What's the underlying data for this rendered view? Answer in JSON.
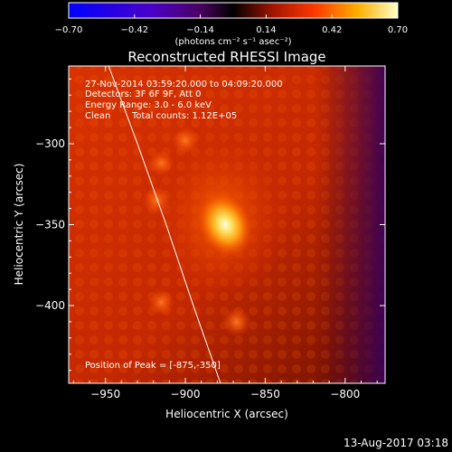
{
  "chart_data": {
    "type": "heatmap",
    "title": "Reconstructed RHESSI Image",
    "xlabel": "Heliocentric X (arcsec)",
    "ylabel": "Heliocentric Y (arcsec)",
    "xlim": [
      -973,
      -775
    ],
    "ylim": [
      -448,
      -252
    ],
    "x_ticks": [
      -950,
      -900,
      -850,
      -800
    ],
    "x_tick_labels": [
      "−950",
      "−900",
      "−850",
      "−800"
    ],
    "y_ticks": [
      -300,
      -350,
      -400
    ],
    "y_tick_labels": [
      "−300",
      "−350",
      "−400"
    ],
    "colorbar": {
      "range": [
        -0.7,
        0.7
      ],
      "ticks": [
        -0.7,
        -0.42,
        -0.14,
        0.14,
        0.42,
        0.7
      ],
      "tick_labels": [
        "−0.70",
        "−0.42",
        "−0.14",
        "0.14",
        "0.42",
        "0.70"
      ],
      "unit_label": "(photons cm⁻² s⁻¹ asec⁻²)"
    },
    "annotations": {
      "time_range": "27-Nov-2014 03:59:20.000 to 04:09:20.000",
      "detectors": "Detectors: 3F 6F 9F, Att 0",
      "energy_range": "Energy Range: 3.0 - 6.0 keV",
      "method": "Clean",
      "total_counts": "Total counts: 1.12E+05",
      "peak_position": "Position of Peak = [-875,-350]"
    },
    "peak": {
      "x": -875,
      "y": -350
    },
    "secondary_sources": [
      {
        "x": -900,
        "y": -298,
        "strength": 0.25
      },
      {
        "x": -918,
        "y": -335,
        "strength": 0.28
      },
      {
        "x": -868,
        "y": -410,
        "strength": 0.3
      },
      {
        "x": -915,
        "y": -398,
        "strength": 0.22
      },
      {
        "x": -915,
        "y": -312,
        "strength": 0.2
      }
    ],
    "limb_curve": [
      [
        -948,
        -252
      ],
      [
        -930,
        -300
      ],
      [
        -912,
        -350
      ],
      [
        -895,
        -400
      ],
      [
        -878,
        -448
      ]
    ]
  },
  "footer": {
    "timestamp": "13-Aug-2017 03:18"
  }
}
